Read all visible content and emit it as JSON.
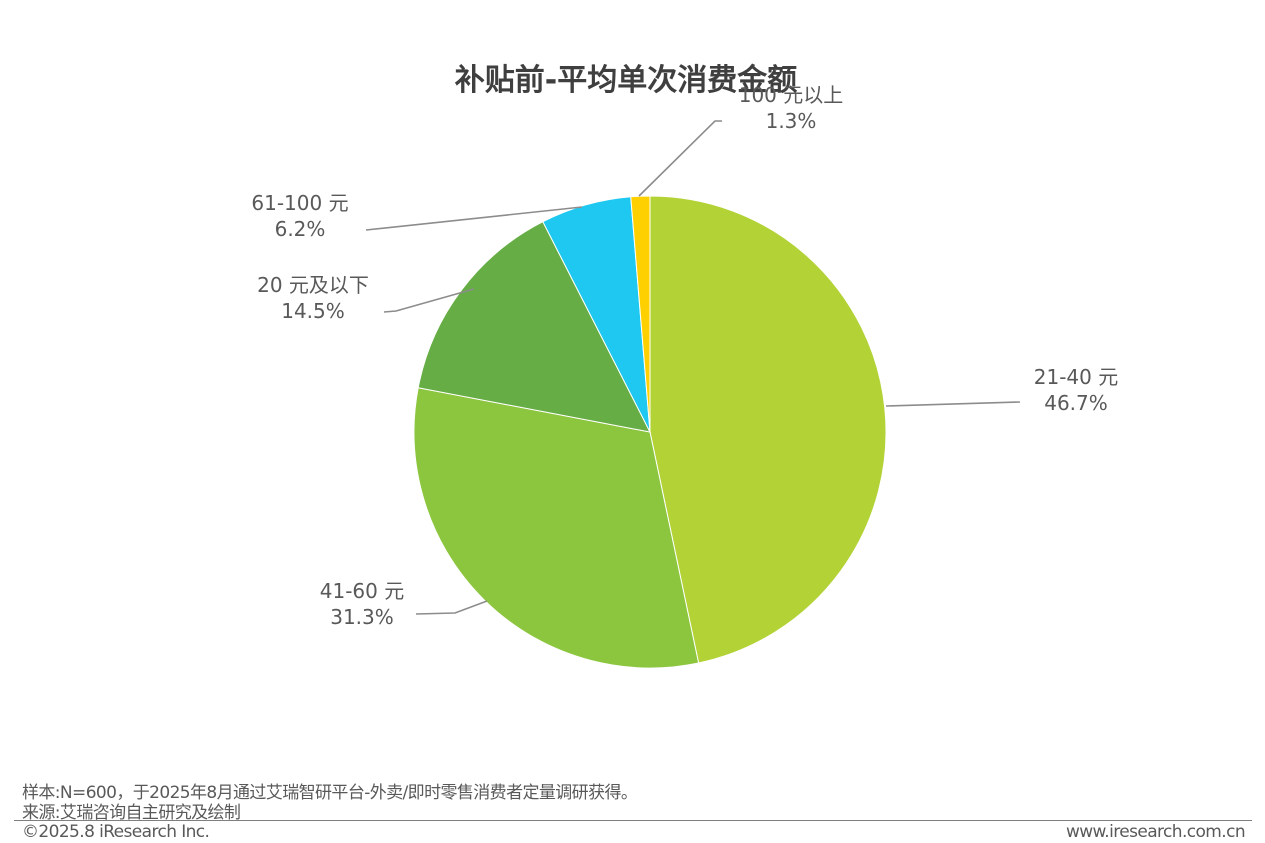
{
  "chart_data": {
    "type": "pie",
    "title": "补贴前-平均单次消费金额",
    "slices": [
      {
        "label": "21-40 元",
        "value": 46.7,
        "display": "46.7%",
        "color": "#b2d235"
      },
      {
        "label": "41-60 元",
        "value": 31.3,
        "display": "31.3%",
        "color": "#8cc63f"
      },
      {
        "label": "20 元及以下",
        "value": 14.5,
        "display": "14.5%",
        "color": "#66ad45"
      },
      {
        "label": "61-100 元",
        "value": 6.2,
        "display": "6.2%",
        "color": "#1ec8f0"
      },
      {
        "label": "100 元以上",
        "value": 1.3,
        "display": "1.3%",
        "color": "#ffd000"
      }
    ],
    "start_angle_deg": 0,
    "direction": "clockwise",
    "legend": "none",
    "data_labels": "outside with leader lines"
  },
  "footer": {
    "note": "样本:N=600，于2025年8月通过艾瑞智研平台-外卖/即时零售消费者定量调研获得。",
    "source": "来源:艾瑞咨询自主研究及绘制",
    "copyright": "©2025.8 iResearch Inc.",
    "website": "www.iresearch.com.cn"
  }
}
